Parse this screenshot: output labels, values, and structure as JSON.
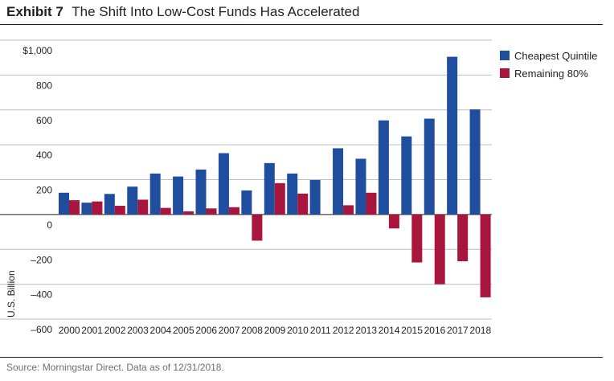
{
  "header": {
    "exhibit": "Exhibit 7",
    "title": "The Shift Into Low-Cost Funds Has Accelerated"
  },
  "footer": {
    "source": "Source: Morningstar Direct. Data as of 12/31/2018."
  },
  "colors": {
    "cheapest": "#1f4e9e",
    "remaining": "#a8163e",
    "grid": "#bcbec0",
    "axis": "#231f20"
  },
  "chart_data": {
    "type": "bar",
    "ylabel": "U.S. Billion",
    "ylim": [
      -600,
      1000
    ],
    "yticks": [
      1000,
      800,
      600,
      400,
      200,
      0,
      -200,
      -400,
      -600
    ],
    "ytick_labels": [
      "$1,000",
      "800",
      "600",
      "400",
      "200",
      "0",
      "–200",
      "–400",
      "–600"
    ],
    "grid": true,
    "legend_position": "right",
    "categories": [
      "2000",
      "2001",
      "2002",
      "2003",
      "2004",
      "2005",
      "2006",
      "2007",
      "2008",
      "2009",
      "2010",
      "2011",
      "2012",
      "2013",
      "2014",
      "2015",
      "2016",
      "2017",
      "2018"
    ],
    "series": [
      {
        "name": "Cheapest Quintile",
        "color": "#1f4e9e",
        "values": [
          125,
          68,
          118,
          160,
          235,
          218,
          258,
          352,
          138,
          295,
          235,
          198,
          380,
          320,
          540,
          448,
          550,
          905,
          603
        ]
      },
      {
        "name": "Remaining 80%",
        "color": "#a8163e",
        "values": [
          82,
          75,
          50,
          85,
          38,
          18,
          35,
          42,
          -150,
          180,
          120,
          0,
          53,
          125,
          -80,
          -275,
          -400,
          -268,
          -475
        ]
      }
    ]
  }
}
